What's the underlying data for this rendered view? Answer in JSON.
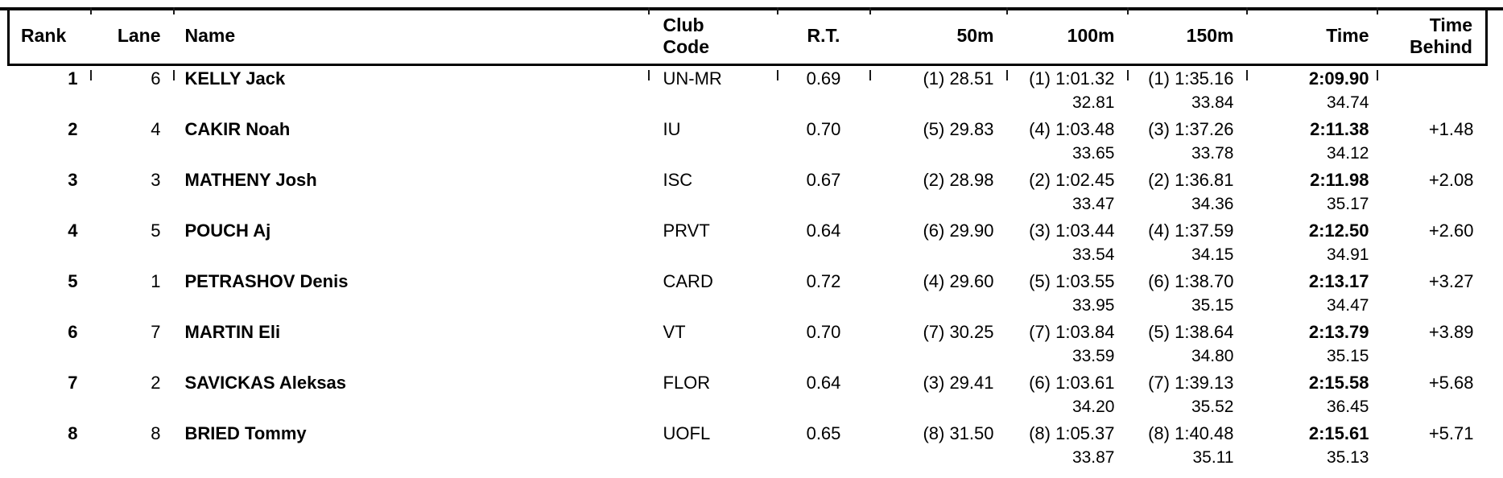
{
  "header": {
    "rank": "Rank",
    "lane": "Lane",
    "name": "Name",
    "club_code": "Club\nCode",
    "rt": "R.T.",
    "m50": "50m",
    "m100": "100m",
    "m150": "150m",
    "time": "Time",
    "time_behind": "Time\nBehind"
  },
  "rows": [
    {
      "rank": "1",
      "lane": "6",
      "name": "KELLY Jack",
      "club": "UN-MR",
      "rt": "0.69",
      "m50": "(1) 28.51",
      "m100": "(1) 1:01.32",
      "m100_split": "32.81",
      "m150": "(1) 1:35.16",
      "m150_split": "33.84",
      "time": "2:09.90",
      "time_split": "34.74",
      "behind": ""
    },
    {
      "rank": "2",
      "lane": "4",
      "name": "CAKIR Noah",
      "club": "IU",
      "rt": "0.70",
      "m50": "(5) 29.83",
      "m100": "(4) 1:03.48",
      "m100_split": "33.65",
      "m150": "(3) 1:37.26",
      "m150_split": "33.78",
      "time": "2:11.38",
      "time_split": "34.12",
      "behind": "+1.48"
    },
    {
      "rank": "3",
      "lane": "3",
      "name": "MATHENY Josh",
      "club": "ISC",
      "rt": "0.67",
      "m50": "(2) 28.98",
      "m100": "(2) 1:02.45",
      "m100_split": "33.47",
      "m150": "(2) 1:36.81",
      "m150_split": "34.36",
      "time": "2:11.98",
      "time_split": "35.17",
      "behind": "+2.08"
    },
    {
      "rank": "4",
      "lane": "5",
      "name": "POUCH Aj",
      "club": "PRVT",
      "rt": "0.64",
      "m50": "(6) 29.90",
      "m100": "(3) 1:03.44",
      "m100_split": "33.54",
      "m150": "(4) 1:37.59",
      "m150_split": "34.15",
      "time": "2:12.50",
      "time_split": "34.91",
      "behind": "+2.60"
    },
    {
      "rank": "5",
      "lane": "1",
      "name": "PETRASHOV Denis",
      "club": "CARD",
      "rt": "0.72",
      "m50": "(4) 29.60",
      "m100": "(5) 1:03.55",
      "m100_split": "33.95",
      "m150": "(6) 1:38.70",
      "m150_split": "35.15",
      "time": "2:13.17",
      "time_split": "34.47",
      "behind": "+3.27"
    },
    {
      "rank": "6",
      "lane": "7",
      "name": "MARTIN Eli",
      "club": "VT",
      "rt": "0.70",
      "m50": "(7) 30.25",
      "m100": "(7) 1:03.84",
      "m100_split": "33.59",
      "m150": "(5) 1:38.64",
      "m150_split": "34.80",
      "time": "2:13.79",
      "time_split": "35.15",
      "behind": "+3.89"
    },
    {
      "rank": "7",
      "lane": "2",
      "name": "SAVICKAS Aleksas",
      "club": "FLOR",
      "rt": "0.64",
      "m50": "(3) 29.41",
      "m100": "(6) 1:03.61",
      "m100_split": "34.20",
      "m150": "(7) 1:39.13",
      "m150_split": "35.52",
      "time": "2:15.58",
      "time_split": "36.45",
      "behind": "+5.68"
    },
    {
      "rank": "8",
      "lane": "8",
      "name": "BRIED Tommy",
      "club": "UOFL",
      "rt": "0.65",
      "m50": "(8) 31.50",
      "m100": "(8) 1:05.37",
      "m100_split": "33.87",
      "m150": "(8) 1:40.48",
      "m150_split": "35.11",
      "time": "2:15.61",
      "time_split": "35.13",
      "behind": "+5.71"
    }
  ]
}
